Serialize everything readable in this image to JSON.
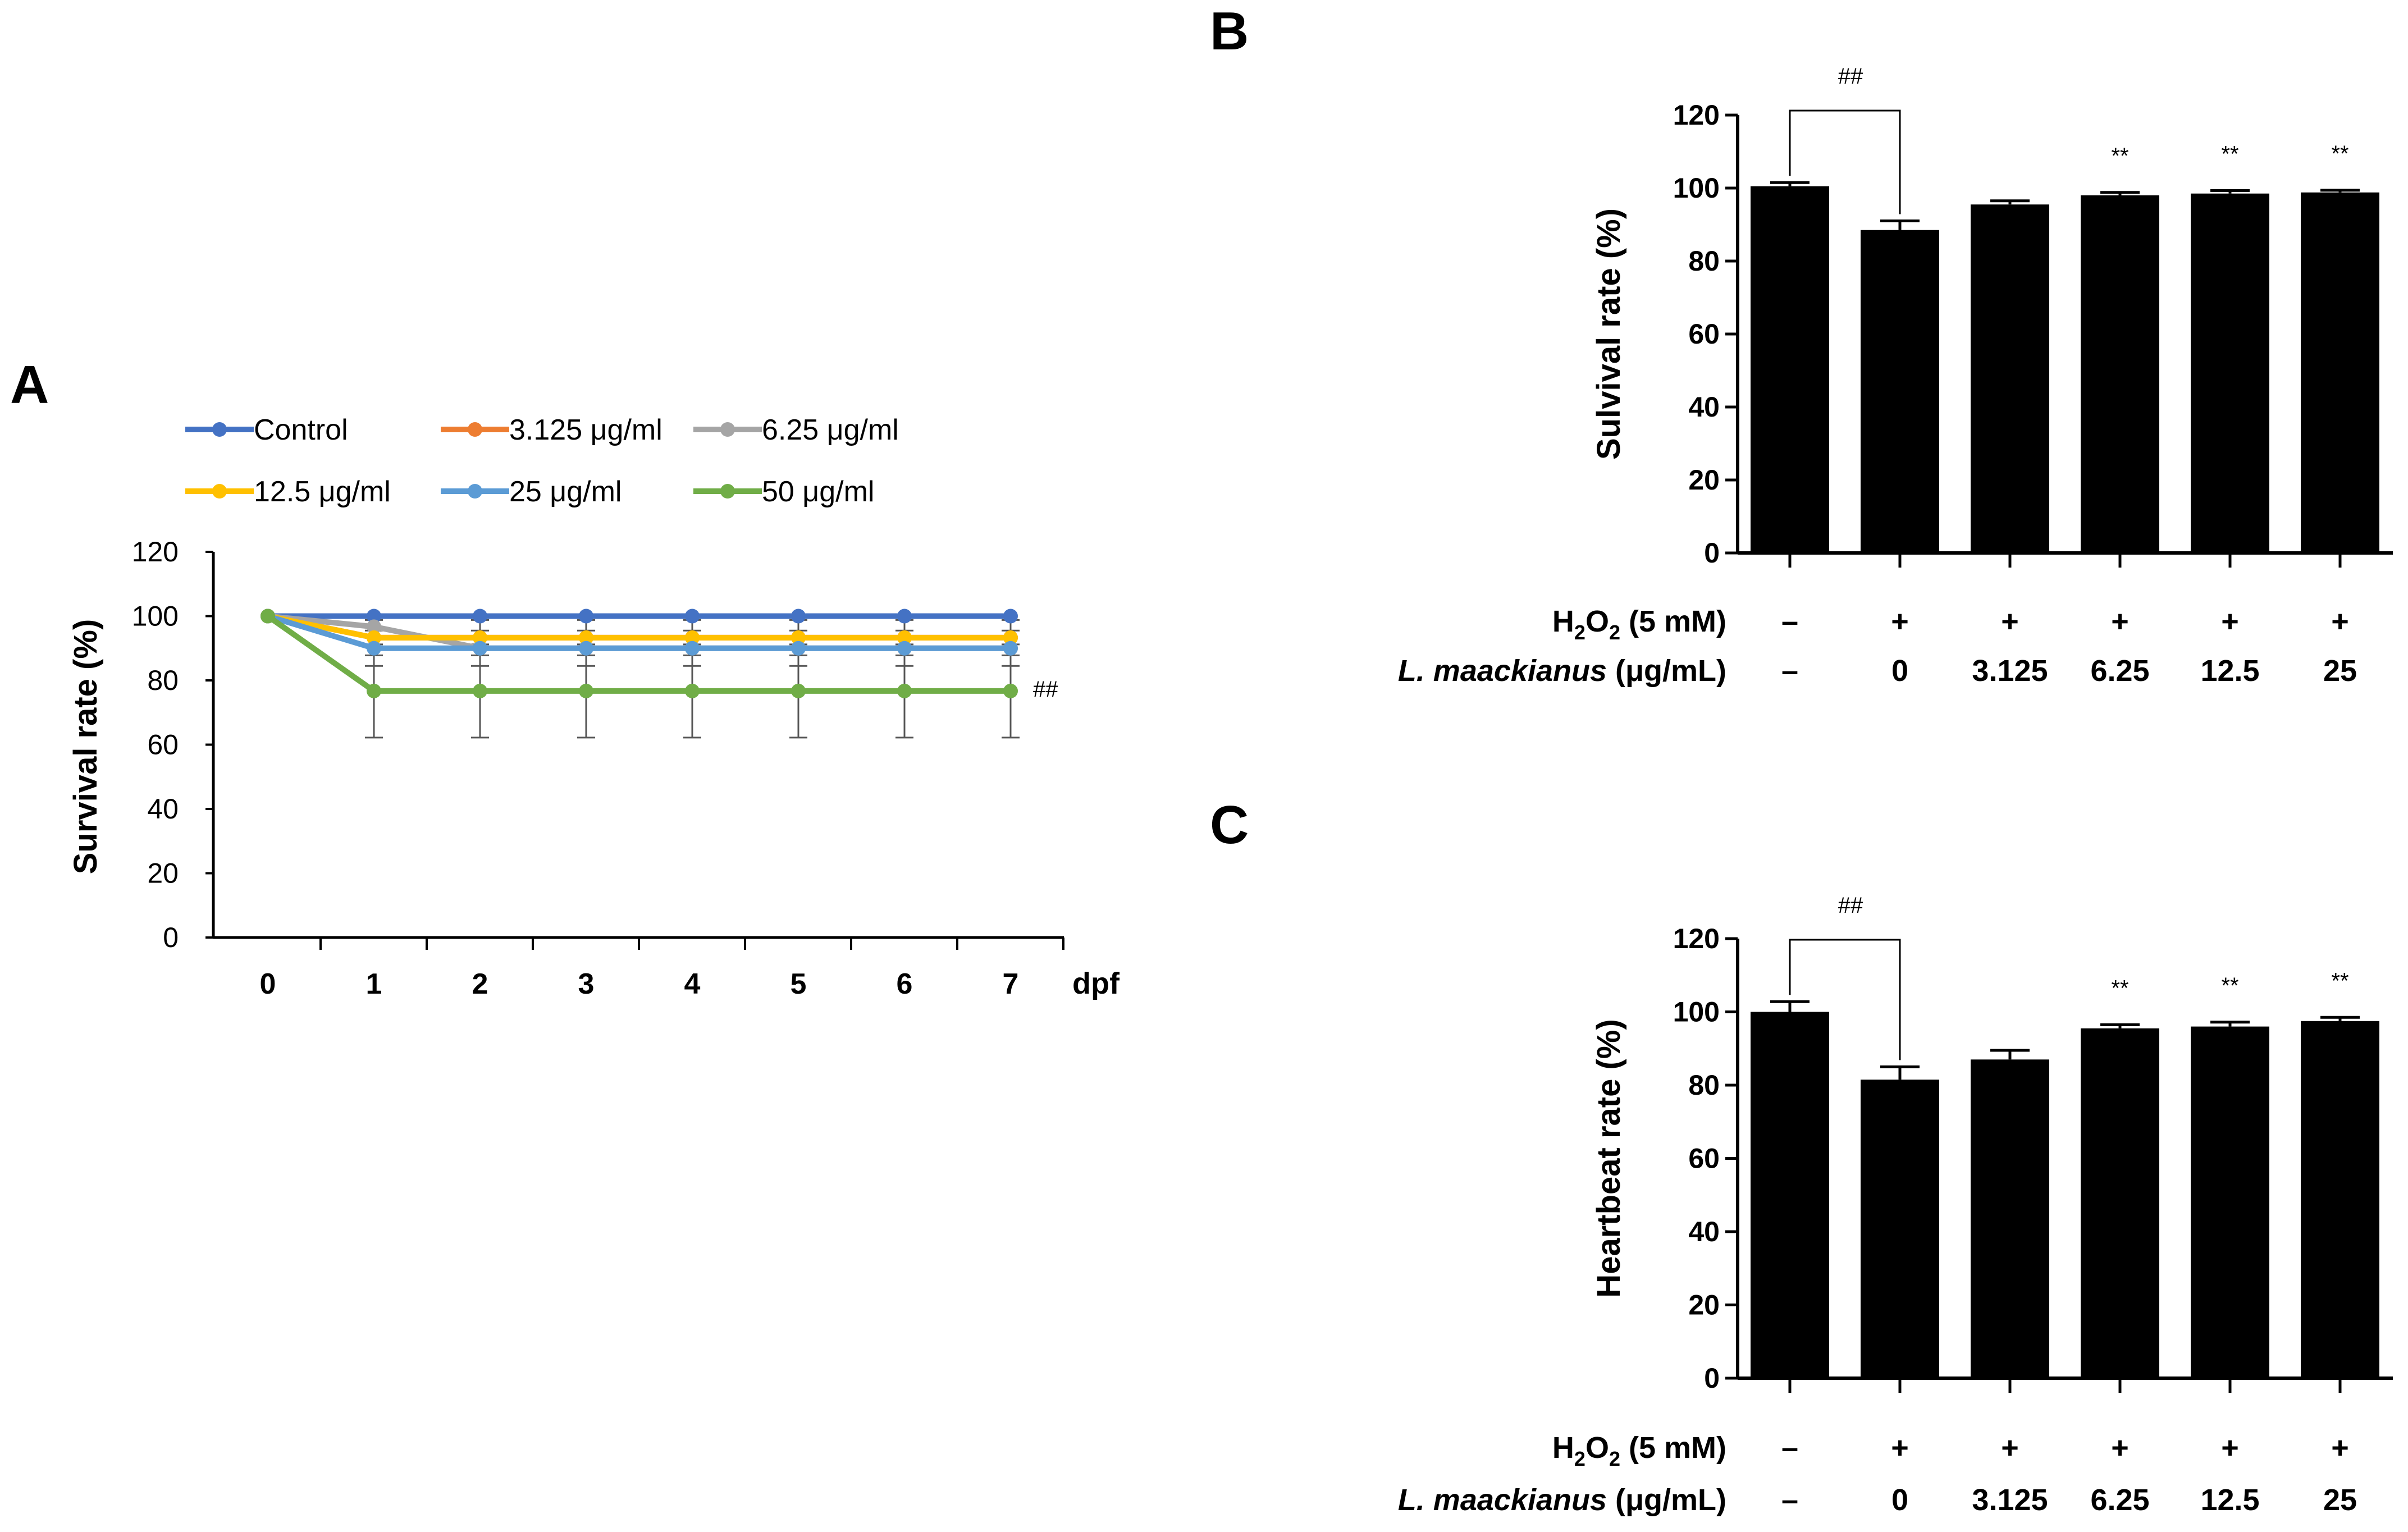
{
  "figure": {
    "panel_labels": [
      "A",
      "B",
      "C"
    ]
  },
  "chart_data": [
    {
      "panel": "A",
      "type": "line",
      "title": "",
      "xlabel": "dpf",
      "ylabel": "Survival rate (%)",
      "ylim": [
        0,
        120
      ],
      "yticks": [
        0,
        20,
        40,
        60,
        80,
        100,
        120
      ],
      "x": [
        0,
        1,
        2,
        3,
        4,
        5,
        6,
        7
      ],
      "legend_position": "top",
      "annotations": [
        {
          "text": "##",
          "series": "50 μg/ml",
          "at_x": 7
        }
      ],
      "series": [
        {
          "name": "Control",
          "color": "#4472C4",
          "values": [
            100,
            100,
            100,
            100,
            100,
            100,
            100,
            100
          ],
          "errors": [
            0,
            0,
            0,
            0,
            0,
            0,
            0,
            0
          ]
        },
        {
          "name": "3.125 μg/ml",
          "color": "#ED7D31",
          "values": [
            100,
            93.3,
            93.3,
            93.3,
            93.3,
            93.3,
            93.3,
            93.3
          ],
          "errors": [
            0,
            0,
            0,
            0,
            0,
            0,
            0,
            0
          ]
        },
        {
          "name": "6.25 μg/ml",
          "color": "#A5A5A5",
          "values": [
            100,
            96.7,
            90,
            90,
            90,
            90,
            90,
            90
          ],
          "errors": [
            0,
            0,
            0,
            0,
            0,
            0,
            0,
            0
          ]
        },
        {
          "name": "12.5 μg/ml",
          "color": "#FFC000",
          "values": [
            100,
            93.3,
            93.3,
            93.3,
            93.3,
            93.3,
            93.3,
            93.3
          ],
          "errors": [
            0,
            5.5,
            5.5,
            5.5,
            5.5,
            5.5,
            5.5,
            5.5
          ]
        },
        {
          "name": "25 μg/ml",
          "color": "#5B9BD5",
          "values": [
            100,
            90,
            90,
            90,
            90,
            90,
            90,
            90
          ],
          "errors": [
            0,
            5.5,
            5.5,
            5.5,
            5.5,
            5.5,
            5.5,
            5.5
          ]
        },
        {
          "name": "50 μg/ml",
          "color": "#70AD47",
          "values": [
            100,
            76.7,
            76.7,
            76.7,
            76.7,
            76.7,
            76.7,
            76.7
          ],
          "errors": [
            0,
            14.5,
            14.5,
            14.5,
            14.5,
            14.5,
            14.5,
            14.5
          ]
        }
      ]
    },
    {
      "panel": "B",
      "type": "bar",
      "title": "",
      "xlabel": "",
      "ylabel": "Sulvival rate (%)",
      "ylim": [
        0,
        120
      ],
      "yticks": [
        0,
        20,
        40,
        60,
        80,
        100,
        120
      ],
      "values": [
        100.5,
        88.5,
        95.5,
        98,
        98.5,
        98.8
      ],
      "errors": [
        1,
        2.5,
        1,
        0.8,
        0.8,
        0.6
      ],
      "markers": [
        "",
        "",
        "",
        "**",
        "**",
        "**"
      ],
      "bracket": {
        "text": "##",
        "from": 0,
        "to": 1
      },
      "rows": [
        {
          "label_main": "H",
          "label_sub": "2",
          "label_main2": "O",
          "label_sub2": "2",
          "label_rest": " (5 mM)",
          "cells": [
            "–",
            "+",
            "+",
            "+",
            "+",
            "+"
          ]
        },
        {
          "label_italic": "L. maackianus",
          "label_rest": " (μg/mL)",
          "cells": [
            "–",
            "0",
            "3.125",
            "6.25",
            "12.5",
            "25"
          ]
        }
      ]
    },
    {
      "panel": "C",
      "type": "bar",
      "title": "",
      "xlabel": "",
      "ylabel": "Heartbeat rate (%)",
      "ylim": [
        0,
        120
      ],
      "yticks": [
        0,
        20,
        40,
        60,
        80,
        100,
        120
      ],
      "values": [
        100,
        81.5,
        87,
        95.5,
        96,
        97.5
      ],
      "errors": [
        2.8,
        3.5,
        2.5,
        1,
        1.2,
        1
      ],
      "markers": [
        "",
        "",
        "",
        "**",
        "**",
        "**"
      ],
      "bracket": {
        "text": "##",
        "from": 0,
        "to": 1
      },
      "rows": [
        {
          "label_main": "H",
          "label_sub": "2",
          "label_main2": "O",
          "label_sub2": "2",
          "label_rest": " (5 mM)",
          "cells": [
            "–",
            "+",
            "+",
            "+",
            "+",
            "+"
          ]
        },
        {
          "label_italic": "L. maackianus",
          "label_rest": " (μg/mL)",
          "cells": [
            "–",
            "0",
            "3.125",
            "6.25",
            "12.5",
            "25"
          ]
        }
      ]
    }
  ]
}
